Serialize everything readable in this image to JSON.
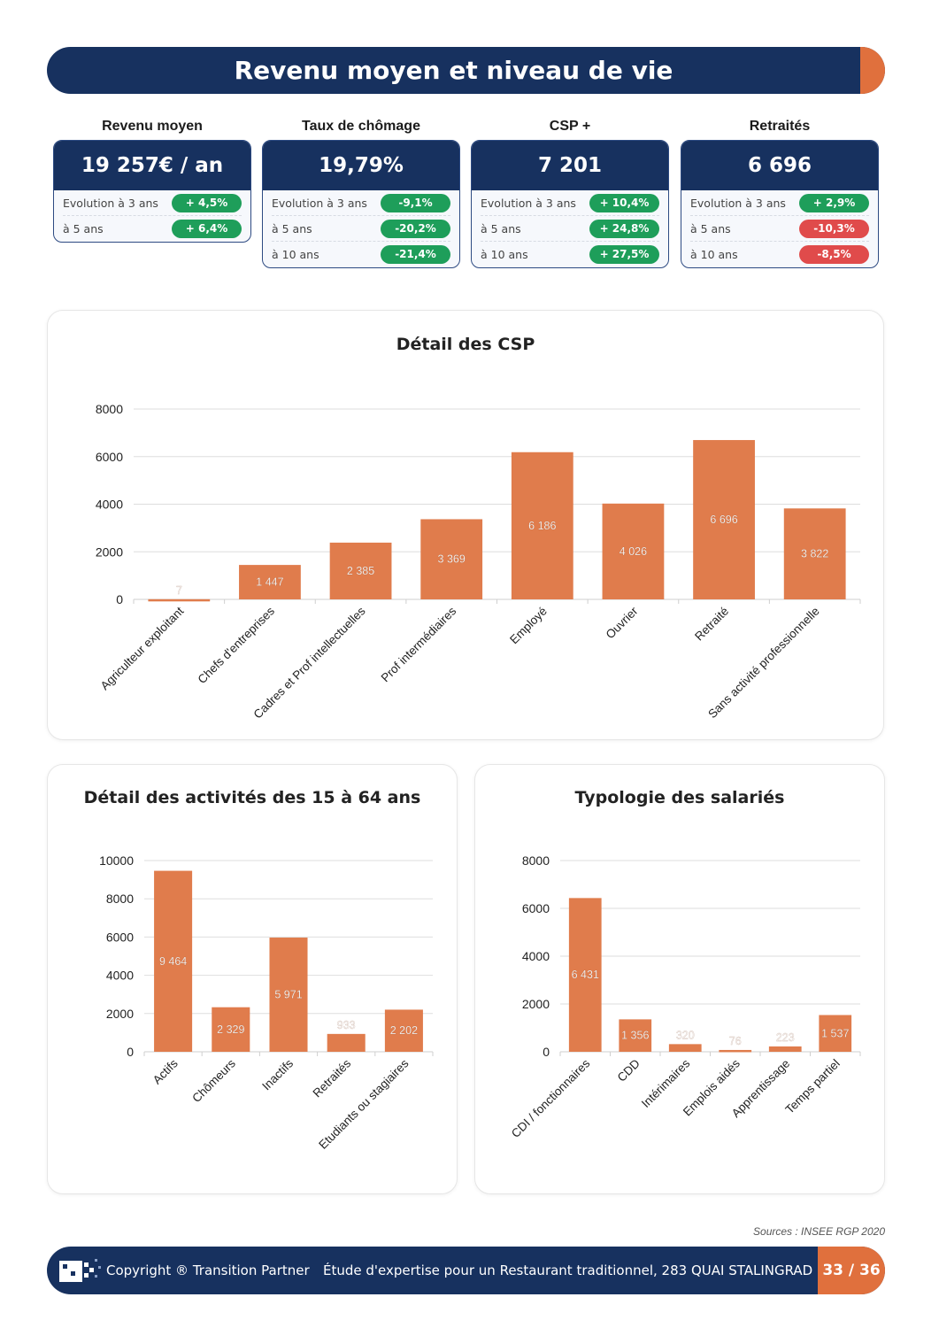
{
  "header": {
    "title": "Revenu moyen et niveau de vie"
  },
  "kpis": [
    {
      "label": "Revenu moyen",
      "value": "19 257€ / an",
      "rows": [
        {
          "label": "Evolution à 3 ans",
          "value": "+ 4,5%",
          "color": "#1e9e5a"
        },
        {
          "label": "à 5 ans",
          "value": "+ 6,4%",
          "color": "#1e9e5a"
        }
      ]
    },
    {
      "label": "Taux de chômage",
      "value": "19,79%",
      "rows": [
        {
          "label": "Evolution à 3 ans",
          "value": "-9,1%",
          "color": "#1e9e5a"
        },
        {
          "label": "à 5 ans",
          "value": "-20,2%",
          "color": "#1e9e5a"
        },
        {
          "label": "à 10 ans",
          "value": "-21,4%",
          "color": "#1e9e5a"
        }
      ]
    },
    {
      "label": "CSP +",
      "value": "7 201",
      "rows": [
        {
          "label": "Evolution à 3 ans",
          "value": "+ 10,4%",
          "color": "#1e9e5a"
        },
        {
          "label": "à 5 ans",
          "value": "+ 24,8%",
          "color": "#1e9e5a"
        },
        {
          "label": "à 10 ans",
          "value": "+ 27,5%",
          "color": "#1e9e5a"
        }
      ]
    },
    {
      "label": "Retraités",
      "value": "6 696",
      "rows": [
        {
          "label": "Evolution à 3 ans",
          "value": "+ 2,9%",
          "color": "#1e9e5a"
        },
        {
          "label": "à 5 ans",
          "value": "-10,3%",
          "color": "#e04b4b"
        },
        {
          "label": "à 10 ans",
          "value": "-8,5%",
          "color": "#e04b4b"
        }
      ]
    }
  ],
  "chart_data": [
    {
      "type": "bar",
      "title": "Détail des CSP",
      "ylim": [
        0,
        8000
      ],
      "yticks": [
        0,
        2000,
        4000,
        6000,
        8000
      ],
      "grid": true,
      "bar_color": "#e07c4c",
      "categories": [
        "Agriculteur exploitant",
        "Chefs d'entreprises",
        "Cadres et Prof intellectuelles",
        "Prof intermédiaires",
        "Employé",
        "Ouvrier",
        "Retraité",
        "Sans activité professionnelle"
      ],
      "values": [
        7,
        1447,
        2385,
        3369,
        6186,
        4026,
        6696,
        3822
      ],
      "labels": [
        "7",
        "1 447",
        "2 385",
        "3 369",
        "6 186",
        "4 026",
        "6 696",
        "3 822"
      ]
    },
    {
      "type": "bar",
      "title": "Détail des activités des 15 à 64 ans",
      "ylim": [
        0,
        10000
      ],
      "yticks": [
        0,
        2000,
        4000,
        6000,
        8000,
        10000
      ],
      "grid": true,
      "bar_color": "#e07c4c",
      "categories": [
        "Actifs",
        "Chômeurs",
        "Inactifs",
        "Retraités",
        "Etudiants ou stagiaires"
      ],
      "values": [
        9464,
        2329,
        5971,
        933,
        2202
      ],
      "labels": [
        "9 464",
        "2 329",
        "5 971",
        "933",
        "2 202"
      ]
    },
    {
      "type": "bar",
      "title": "Typologie des salariés",
      "ylim": [
        0,
        8000
      ],
      "yticks": [
        0,
        2000,
        4000,
        6000,
        8000
      ],
      "grid": true,
      "bar_color": "#e07c4c",
      "categories": [
        "CDI / fonctionnaires",
        "CDD",
        "Intérimaires",
        "Emplois aidés",
        "Apprentissage",
        "Temps partiel"
      ],
      "values": [
        6431,
        1356,
        320,
        76,
        223,
        1537
      ],
      "labels": [
        "6 431",
        "1 356",
        "320",
        "76",
        "223",
        "1 537"
      ]
    }
  ],
  "sources": "Sources : INSEE RGP 2020",
  "footer": {
    "copyright": "Copyright ® Transition Partner",
    "study": "Étude d'expertise pour un Restaurant traditionnel, 283 QUAI STALINGRAD",
    "page": "33 / 36"
  }
}
